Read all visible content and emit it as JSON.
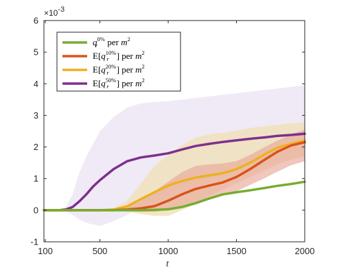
{
  "chart_data": {
    "type": "line",
    "xlabel": "t",
    "ylabel": "",
    "xlim": [
      90,
      2000
    ],
    "ylim": [
      -1,
      6
    ],
    "x_ticks": [
      100,
      500,
      1000,
      1500,
      2000
    ],
    "y_ticks": [
      -1,
      0,
      1,
      2,
      3,
      4,
      5,
      6
    ],
    "y_scale_label": "×10-3",
    "grid": false,
    "legend_position": "top-left",
    "series": [
      {
        "key": "q0",
        "name": "q_r^{0%} per m^2",
        "legend_html": "q<tspan>r</tspan><tspan>0%</tspan> per m<tspan>2</tspan>",
        "color": "#77ac30",
        "x": [
          90,
          100,
          200,
          300,
          400,
          500,
          600,
          700,
          800,
          900,
          1000,
          1100,
          1200,
          1300,
          1400,
          1500,
          1600,
          1700,
          1800,
          1900,
          2000
        ],
        "y": [
          0,
          0,
          0,
          0,
          0,
          0,
          0,
          0,
          0,
          0.01,
          0.03,
          0.1,
          0.22,
          0.37,
          0.5,
          0.57,
          0.63,
          0.7,
          0.77,
          0.83,
          0.9
        ]
      },
      {
        "key": "q10",
        "name": "E[q_r^{10%}] per m^2",
        "color": "#d95319",
        "band_color": "#e8a89a",
        "x": [
          90,
          100,
          200,
          300,
          400,
          500,
          600,
          700,
          800,
          900,
          1000,
          1100,
          1200,
          1300,
          1400,
          1500,
          1600,
          1700,
          1800,
          1900,
          2000
        ],
        "y": [
          0,
          0,
          0,
          0,
          0,
          0,
          0,
          0.02,
          0.06,
          0.13,
          0.3,
          0.5,
          0.67,
          0.78,
          0.88,
          1.05,
          1.3,
          1.58,
          1.85,
          2.05,
          2.15
        ],
        "lower": [
          0,
          0,
          0,
          0,
          0,
          0,
          0,
          -0.02,
          -0.05,
          -0.05,
          0.0,
          0.1,
          0.25,
          0.38,
          0.48,
          0.6,
          0.8,
          1.0,
          1.22,
          1.42,
          1.55
        ],
        "upper": [
          0,
          0,
          0,
          0,
          0,
          0,
          0.02,
          0.08,
          0.3,
          0.6,
          0.9,
          1.2,
          1.4,
          1.45,
          1.48,
          1.55,
          1.75,
          1.98,
          2.2,
          2.4,
          2.55
        ]
      },
      {
        "key": "q20",
        "name": "E[q_r^{20%}] per m^2",
        "color": "#edb120",
        "band_color": "#f0e0b8",
        "x": [
          90,
          100,
          200,
          300,
          400,
          500,
          600,
          700,
          800,
          900,
          1000,
          1100,
          1200,
          1300,
          1400,
          1500,
          1600,
          1700,
          1800,
          1900,
          2000
        ],
        "y": [
          0,
          0,
          0,
          0,
          0,
          0,
          0.02,
          0.12,
          0.35,
          0.57,
          0.78,
          0.92,
          1.03,
          1.1,
          1.17,
          1.3,
          1.5,
          1.75,
          1.98,
          2.1,
          2.2
        ],
        "lower": [
          0,
          0,
          0,
          0,
          0,
          0,
          -0.02,
          -0.05,
          -0.12,
          -0.18,
          -0.18,
          0.0,
          0.2,
          0.45,
          0.65,
          0.85,
          1.05,
          1.25,
          1.45,
          1.6,
          1.72
        ],
        "upper": [
          0,
          0,
          0,
          0,
          0,
          0,
          0.05,
          0.3,
          0.85,
          1.4,
          1.75,
          2.05,
          2.3,
          2.4,
          2.45,
          2.52,
          2.6,
          2.65,
          2.7,
          2.75,
          2.78
        ]
      },
      {
        "key": "q50",
        "name": "E[q_r^{50%}] per m^2",
        "color": "#7e2f8e",
        "band_color": "#ede6f4",
        "x": [
          90,
          100,
          200,
          250,
          300,
          350,
          400,
          450,
          500,
          600,
          700,
          800,
          900,
          1000,
          1100,
          1200,
          1300,
          1400,
          1500,
          1600,
          1700,
          1800,
          1900,
          2000
        ],
        "y": [
          0,
          0,
          0,
          0.02,
          0.1,
          0.28,
          0.5,
          0.75,
          0.95,
          1.3,
          1.55,
          1.67,
          1.73,
          1.8,
          1.92,
          2.03,
          2.1,
          2.16,
          2.21,
          2.26,
          2.3,
          2.35,
          2.38,
          2.42
        ],
        "lower": [
          0,
          0,
          0,
          -0.05,
          -0.15,
          -0.3,
          -0.4,
          -0.45,
          -0.5,
          -0.35,
          -0.15,
          0.1,
          0.35,
          0.55,
          0.75,
          0.9,
          1.0,
          1.1,
          1.2,
          1.3,
          1.4,
          1.5,
          1.6,
          1.7
        ],
        "upper": [
          0,
          0,
          0.02,
          0.1,
          0.5,
          1.2,
          1.7,
          2.1,
          2.5,
          2.95,
          3.25,
          3.38,
          3.42,
          3.45,
          3.5,
          3.55,
          3.6,
          3.65,
          3.7,
          3.75,
          3.8,
          3.85,
          3.9,
          3.95
        ]
      }
    ]
  }
}
